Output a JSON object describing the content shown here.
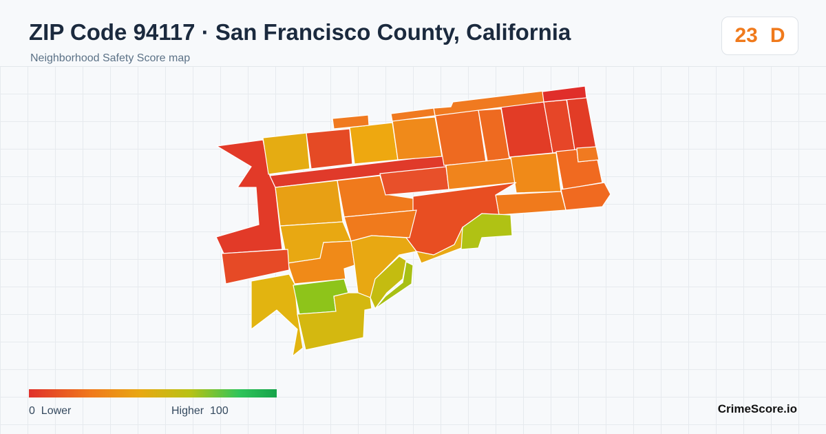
{
  "header": {
    "title": "ZIP Code 94117 · San Francisco County, California",
    "subtitle": "Neighborhood Safety Score map"
  },
  "score": {
    "value": 23,
    "grade": "D"
  },
  "legend": {
    "min": 0,
    "min_label": "Lower",
    "max_label": "Higher",
    "max": 100
  },
  "brand": "CrimeScore.io"
}
